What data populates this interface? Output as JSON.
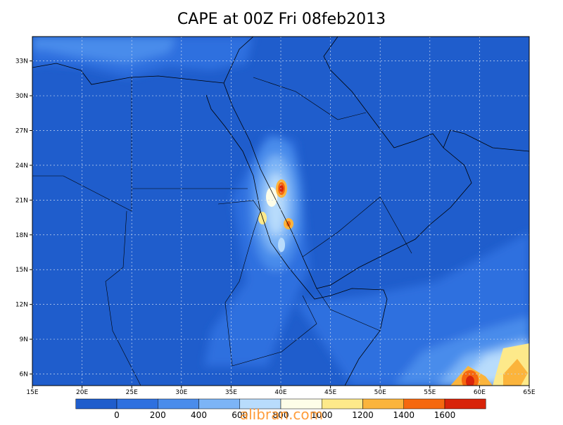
{
  "title": "CAPE at 00Z Fri 08feb2013",
  "map": {
    "xlim": [
      15,
      65
    ],
    "ylim": [
      5,
      35.1
    ],
    "xticks": [
      {
        "value": 15,
        "label": "15E"
      },
      {
        "value": 20,
        "label": "20E"
      },
      {
        "value": 25,
        "label": "25E"
      },
      {
        "value": 30,
        "label": "30E"
      },
      {
        "value": 35,
        "label": "35E"
      },
      {
        "value": 40,
        "label": "40E"
      },
      {
        "value": 45,
        "label": "45E"
      },
      {
        "value": 50,
        "label": "50E"
      },
      {
        "value": 55,
        "label": "55E"
      },
      {
        "value": 60,
        "label": "60E"
      },
      {
        "value": 65,
        "label": "65E"
      }
    ],
    "yticks": [
      {
        "value": 6,
        "label": "6N"
      },
      {
        "value": 9,
        "label": "9N"
      },
      {
        "value": 12,
        "label": "12N"
      },
      {
        "value": 15,
        "label": "15N"
      },
      {
        "value": 18,
        "label": "18N"
      },
      {
        "value": 21,
        "label": "21N"
      },
      {
        "value": 24,
        "label": "24N"
      },
      {
        "value": 27,
        "label": "27N"
      },
      {
        "value": 30,
        "label": "30N"
      },
      {
        "value": 33,
        "label": "33N"
      }
    ],
    "grid": true
  },
  "colorbar": {
    "levels": [
      0,
      200,
      400,
      600,
      800,
      1000,
      1200,
      1400,
      1600
    ],
    "colors": [
      "#1f5dcc",
      "#2e70df",
      "#4a8ceb",
      "#7cb4f6",
      "#b8dcfc",
      "#fdfde8",
      "#fde98a",
      "#fbb43c",
      "#f5680f",
      "#d8240a",
      "#9c0606"
    ]
  },
  "watermark": "alibran.com"
}
